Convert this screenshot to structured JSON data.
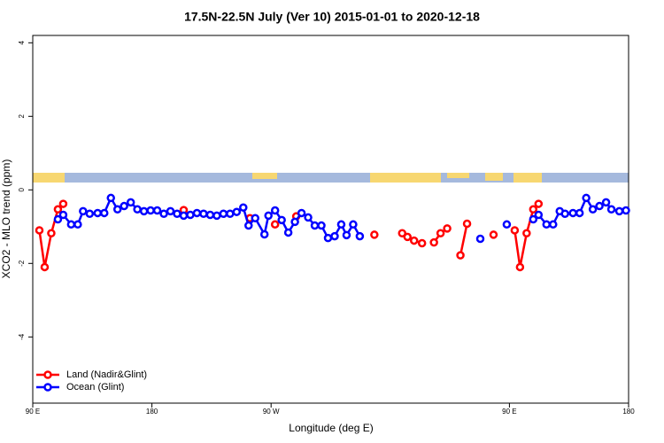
{
  "chart_data": {
    "type": "line",
    "title": "17.5N-22.5N July (Ver 10)   2015-01-01 to 2020-12-18",
    "x_label": "Longitude (deg E)",
    "y_label": "XCO2 - MLO trend (ppm)",
    "xlim": [
      90,
      540
    ],
    "xticks": [
      {
        "value": 90,
        "label": "90 E"
      },
      180,
      {
        "value": 270,
        "label": "90 W"
      },
      {
        "value": 450,
        "label": "90 E"
      },
      {
        "value": 540,
        "label": "180"
      }
    ],
    "ylim": [
      -5.8,
      4.2
    ],
    "yticks": [
      -4,
      -2,
      0,
      2,
      4
    ],
    "legend": "bottom-left",
    "series": [
      {
        "name": "Land (Nadir&Glint)",
        "color": "#ff0000",
        "x": [
          95,
          99,
          104,
          109,
          113,
          null,
          204,
          null,
          254,
          null,
          273,
          null,
          289,
          null,
          348,
          null,
          369,
          373,
          378,
          384,
          null,
          393,
          398,
          403,
          null,
          413,
          418,
          null,
          438,
          null,
          454,
          458,
          463,
          468,
          472
        ],
        "values": [
          -1.1,
          -2.1,
          -1.18,
          -0.53,
          -0.38,
          null,
          -0.55,
          null,
          -0.77,
          null,
          -0.94,
          null,
          -0.72,
          null,
          -1.22,
          null,
          -1.18,
          -1.28,
          -1.38,
          -1.45,
          null,
          -1.43,
          -1.18,
          -1.05,
          null,
          -1.78,
          -0.92,
          null,
          -1.22,
          null,
          -1.1,
          -2.1,
          -1.18,
          -0.53,
          -0.38
        ]
      },
      {
        "name": "Ocean (Glint)",
        "color": "#0000ff",
        "x": [
          109,
          113,
          119,
          124,
          128,
          133,
          139,
          144,
          149,
          154,
          159,
          164,
          169,
          174,
          179,
          184,
          189,
          194,
          199,
          204,
          209,
          214,
          219,
          224,
          229,
          234,
          239,
          244,
          249,
          253,
          258,
          265,
          268,
          273,
          278,
          283,
          288,
          293,
          298,
          303,
          308,
          313,
          318,
          323,
          327,
          332,
          337,
          null,
          428,
          null,
          448,
          null,
          468,
          472,
          478,
          483,
          488,
          492,
          498,
          503,
          508,
          513,
          518,
          523,
          527,
          533,
          538
        ],
        "values": [
          -0.8,
          -0.68,
          -0.94,
          -0.94,
          -0.58,
          -0.65,
          -0.63,
          -0.63,
          -0.22,
          -0.53,
          -0.44,
          -0.34,
          -0.53,
          -0.58,
          -0.56,
          -0.56,
          -0.65,
          -0.58,
          -0.65,
          -0.7,
          -0.68,
          -0.63,
          -0.65,
          -0.68,
          -0.7,
          -0.65,
          -0.65,
          -0.6,
          -0.48,
          -0.97,
          -0.77,
          -1.21,
          -0.7,
          -0.56,
          -0.82,
          -1.16,
          -0.87,
          -0.63,
          -0.75,
          -0.97,
          -0.97,
          -1.31,
          -1.26,
          -0.94,
          -1.23,
          -0.94,
          -1.26,
          null,
          -1.33,
          null,
          -0.94,
          null,
          -0.8,
          -0.68,
          -0.94,
          -0.94,
          -0.58,
          -0.65,
          -0.63,
          -0.63,
          -0.22,
          -0.53,
          -0.44,
          -0.34,
          -0.53,
          -0.58,
          -0.56
        ]
      }
    ]
  }
}
